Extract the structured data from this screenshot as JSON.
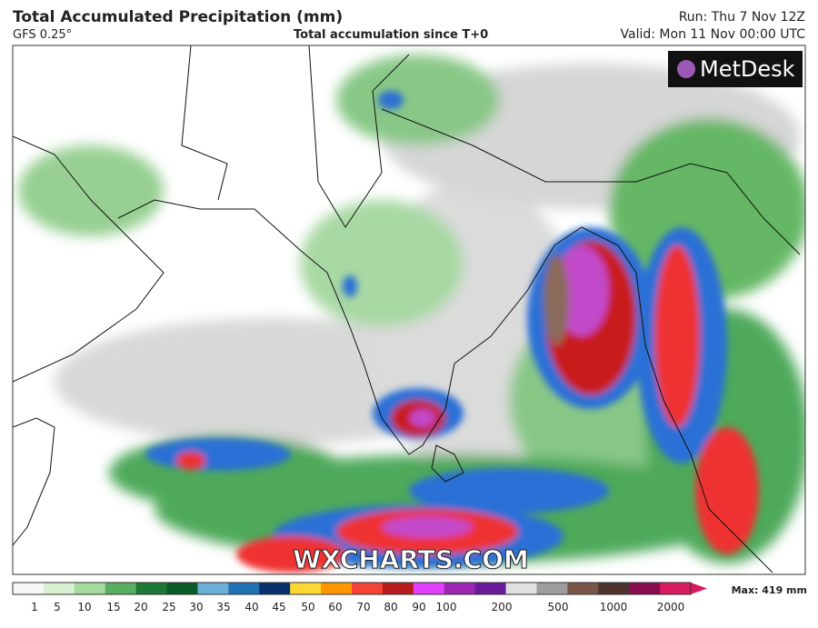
{
  "header": {
    "title": "Total Accumulated Precipitation (mm)",
    "model": "GFS 0.25°",
    "subtitle": "Total accumulation since T+0",
    "run": "Run: Thu 7 Nov 12Z",
    "valid": "Valid: Mon 11 Nov 00:00 UTC"
  },
  "logo": "MetDesk",
  "watermark": "WXCHARTS.COM",
  "legend": {
    "labels": [
      1,
      5,
      10,
      15,
      20,
      25,
      30,
      35,
      40,
      45,
      50,
      60,
      70,
      80,
      90,
      100,
      200,
      500,
      1000,
      2000
    ],
    "max": "Max: 419 mm"
  }
}
